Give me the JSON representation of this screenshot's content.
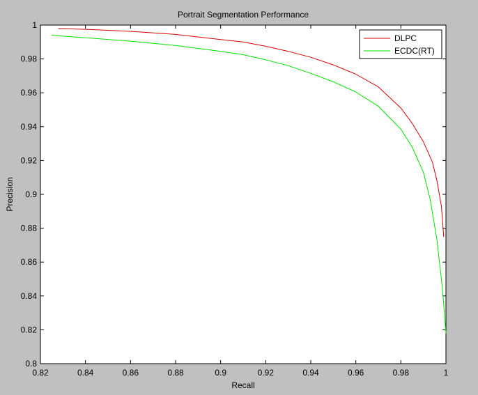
{
  "chart_data": {
    "type": "line",
    "title": "Portrait Segmentation Performance",
    "xlabel": "Recall",
    "ylabel": "Precision",
    "xlim": [
      0.82,
      1.0
    ],
    "ylim": [
      0.8,
      1.0
    ],
    "xticks": [
      0.82,
      0.84,
      0.86,
      0.88,
      0.9,
      0.92,
      0.94,
      0.96,
      0.98,
      1.0
    ],
    "xtick_labels": [
      "0.82",
      "0.84",
      "0.86",
      "0.88",
      "0.9",
      "0.92",
      "0.94",
      "0.96",
      "0.98",
      "1"
    ],
    "yticks": [
      0.8,
      0.82,
      0.84,
      0.86,
      0.88,
      0.9,
      0.92,
      0.94,
      0.96,
      0.98,
      1.0
    ],
    "ytick_labels": [
      "0.8",
      "0.82",
      "0.84",
      "0.86",
      "0.88",
      "0.9",
      "0.92",
      "0.94",
      "0.96",
      "0.98",
      "1"
    ],
    "grid": false,
    "legend_position": "top-right",
    "series": [
      {
        "name": "DLPC",
        "color": "#d40000",
        "x": [
          0.828,
          0.84,
          0.86,
          0.88,
          0.9,
          0.91,
          0.92,
          0.93,
          0.94,
          0.95,
          0.96,
          0.97,
          0.98,
          0.985,
          0.99,
          0.994,
          0.996,
          0.998,
          0.999
        ],
        "y": [
          0.998,
          0.9975,
          0.9963,
          0.9945,
          0.9915,
          0.99,
          0.9875,
          0.9845,
          0.981,
          0.9765,
          0.971,
          0.9635,
          0.951,
          0.942,
          0.931,
          0.919,
          0.908,
          0.893,
          0.875
        ]
      },
      {
        "name": "ECDC(RT)",
        "color": "#00e000",
        "x": [
          0.825,
          0.84,
          0.86,
          0.88,
          0.9,
          0.91,
          0.92,
          0.93,
          0.94,
          0.95,
          0.96,
          0.97,
          0.98,
          0.985,
          0.99,
          0.993,
          0.996,
          0.998,
          0.999,
          0.9995,
          1.0
        ],
        "y": [
          0.994,
          0.9925,
          0.9905,
          0.988,
          0.9845,
          0.9825,
          0.9795,
          0.976,
          0.9715,
          0.9665,
          0.9605,
          0.952,
          0.9385,
          0.928,
          0.913,
          0.897,
          0.873,
          0.85,
          0.835,
          0.826,
          0.818
        ]
      }
    ]
  }
}
